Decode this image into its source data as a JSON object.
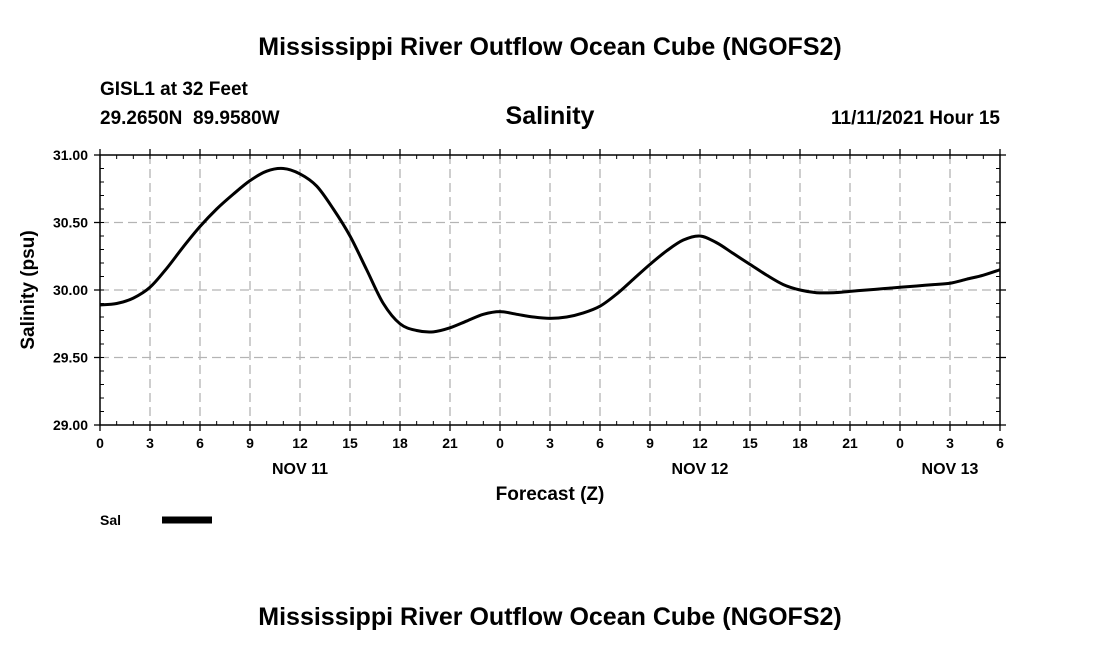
{
  "title": "Mississippi River Outflow Ocean Cube (NGOFS2)",
  "station": "GISL1 at 32 Feet",
  "coords": "29.2650N  89.9580W",
  "variable": "Salinity",
  "timestamp": "11/11/2021 Hour 15",
  "footer_title": "Mississippi River Outflow Ocean Cube (NGOFS2)",
  "legend": {
    "label": "Sal",
    "color": "#000000"
  },
  "chart_data": {
    "type": "line",
    "title": "Salinity",
    "xlabel": "Forecast (Z)",
    "ylabel": "Salinity (psu)",
    "ylim": [
      29.0,
      31.0
    ],
    "xlim": [
      0,
      54
    ],
    "grid": true,
    "y_ticks": [
      {
        "value": 29.0,
        "label": "29.00"
      },
      {
        "value": 29.5,
        "label": "29.50"
      },
      {
        "value": 30.0,
        "label": "30.00"
      },
      {
        "value": 30.5,
        "label": "30.50"
      },
      {
        "value": 31.0,
        "label": "31.00"
      }
    ],
    "x_ticks": [
      {
        "value": 0,
        "label": "0"
      },
      {
        "value": 3,
        "label": "3"
      },
      {
        "value": 6,
        "label": "6"
      },
      {
        "value": 9,
        "label": "9"
      },
      {
        "value": 12,
        "label": "12"
      },
      {
        "value": 15,
        "label": "15"
      },
      {
        "value": 18,
        "label": "18"
      },
      {
        "value": 21,
        "label": "21"
      },
      {
        "value": 24,
        "label": "0"
      },
      {
        "value": 27,
        "label": "3"
      },
      {
        "value": 30,
        "label": "6"
      },
      {
        "value": 33,
        "label": "9"
      },
      {
        "value": 36,
        "label": "12"
      },
      {
        "value": 39,
        "label": "15"
      },
      {
        "value": 42,
        "label": "18"
      },
      {
        "value": 45,
        "label": "21"
      },
      {
        "value": 48,
        "label": "0"
      },
      {
        "value": 51,
        "label": "3"
      },
      {
        "value": 54,
        "label": "6"
      }
    ],
    "date_labels": [
      {
        "value": 12,
        "label": "NOV 11"
      },
      {
        "value": 36,
        "label": "NOV 12"
      },
      {
        "value": 51,
        "label": "NOV 13"
      }
    ],
    "series": [
      {
        "name": "Sal",
        "x": [
          0,
          1,
          2,
          3,
          4,
          5,
          6,
          7,
          8,
          9,
          10,
          11,
          12,
          13,
          14,
          15,
          16,
          17,
          18,
          19,
          20,
          21,
          22,
          23,
          24,
          25,
          26,
          27,
          28,
          29,
          30,
          31,
          32,
          33,
          34,
          35,
          36,
          37,
          38,
          39,
          40,
          41,
          42,
          43,
          44,
          45,
          46,
          47,
          48,
          49,
          50,
          51,
          52,
          53,
          54
        ],
        "values": [
          29.89,
          29.9,
          29.94,
          30.02,
          30.16,
          30.32,
          30.47,
          30.6,
          30.71,
          30.81,
          30.88,
          30.9,
          30.86,
          30.77,
          30.6,
          30.4,
          30.15,
          29.9,
          29.75,
          29.7,
          29.69,
          29.72,
          29.77,
          29.82,
          29.84,
          29.82,
          29.8,
          29.79,
          29.8,
          29.83,
          29.88,
          29.97,
          30.08,
          30.19,
          30.29,
          30.37,
          30.4,
          30.35,
          30.27,
          30.19,
          30.11,
          30.04,
          30.0,
          29.98,
          29.98,
          29.99,
          30.0,
          30.01,
          30.02,
          30.03,
          30.04,
          30.05,
          30.08,
          30.11,
          30.15
        ]
      }
    ]
  }
}
